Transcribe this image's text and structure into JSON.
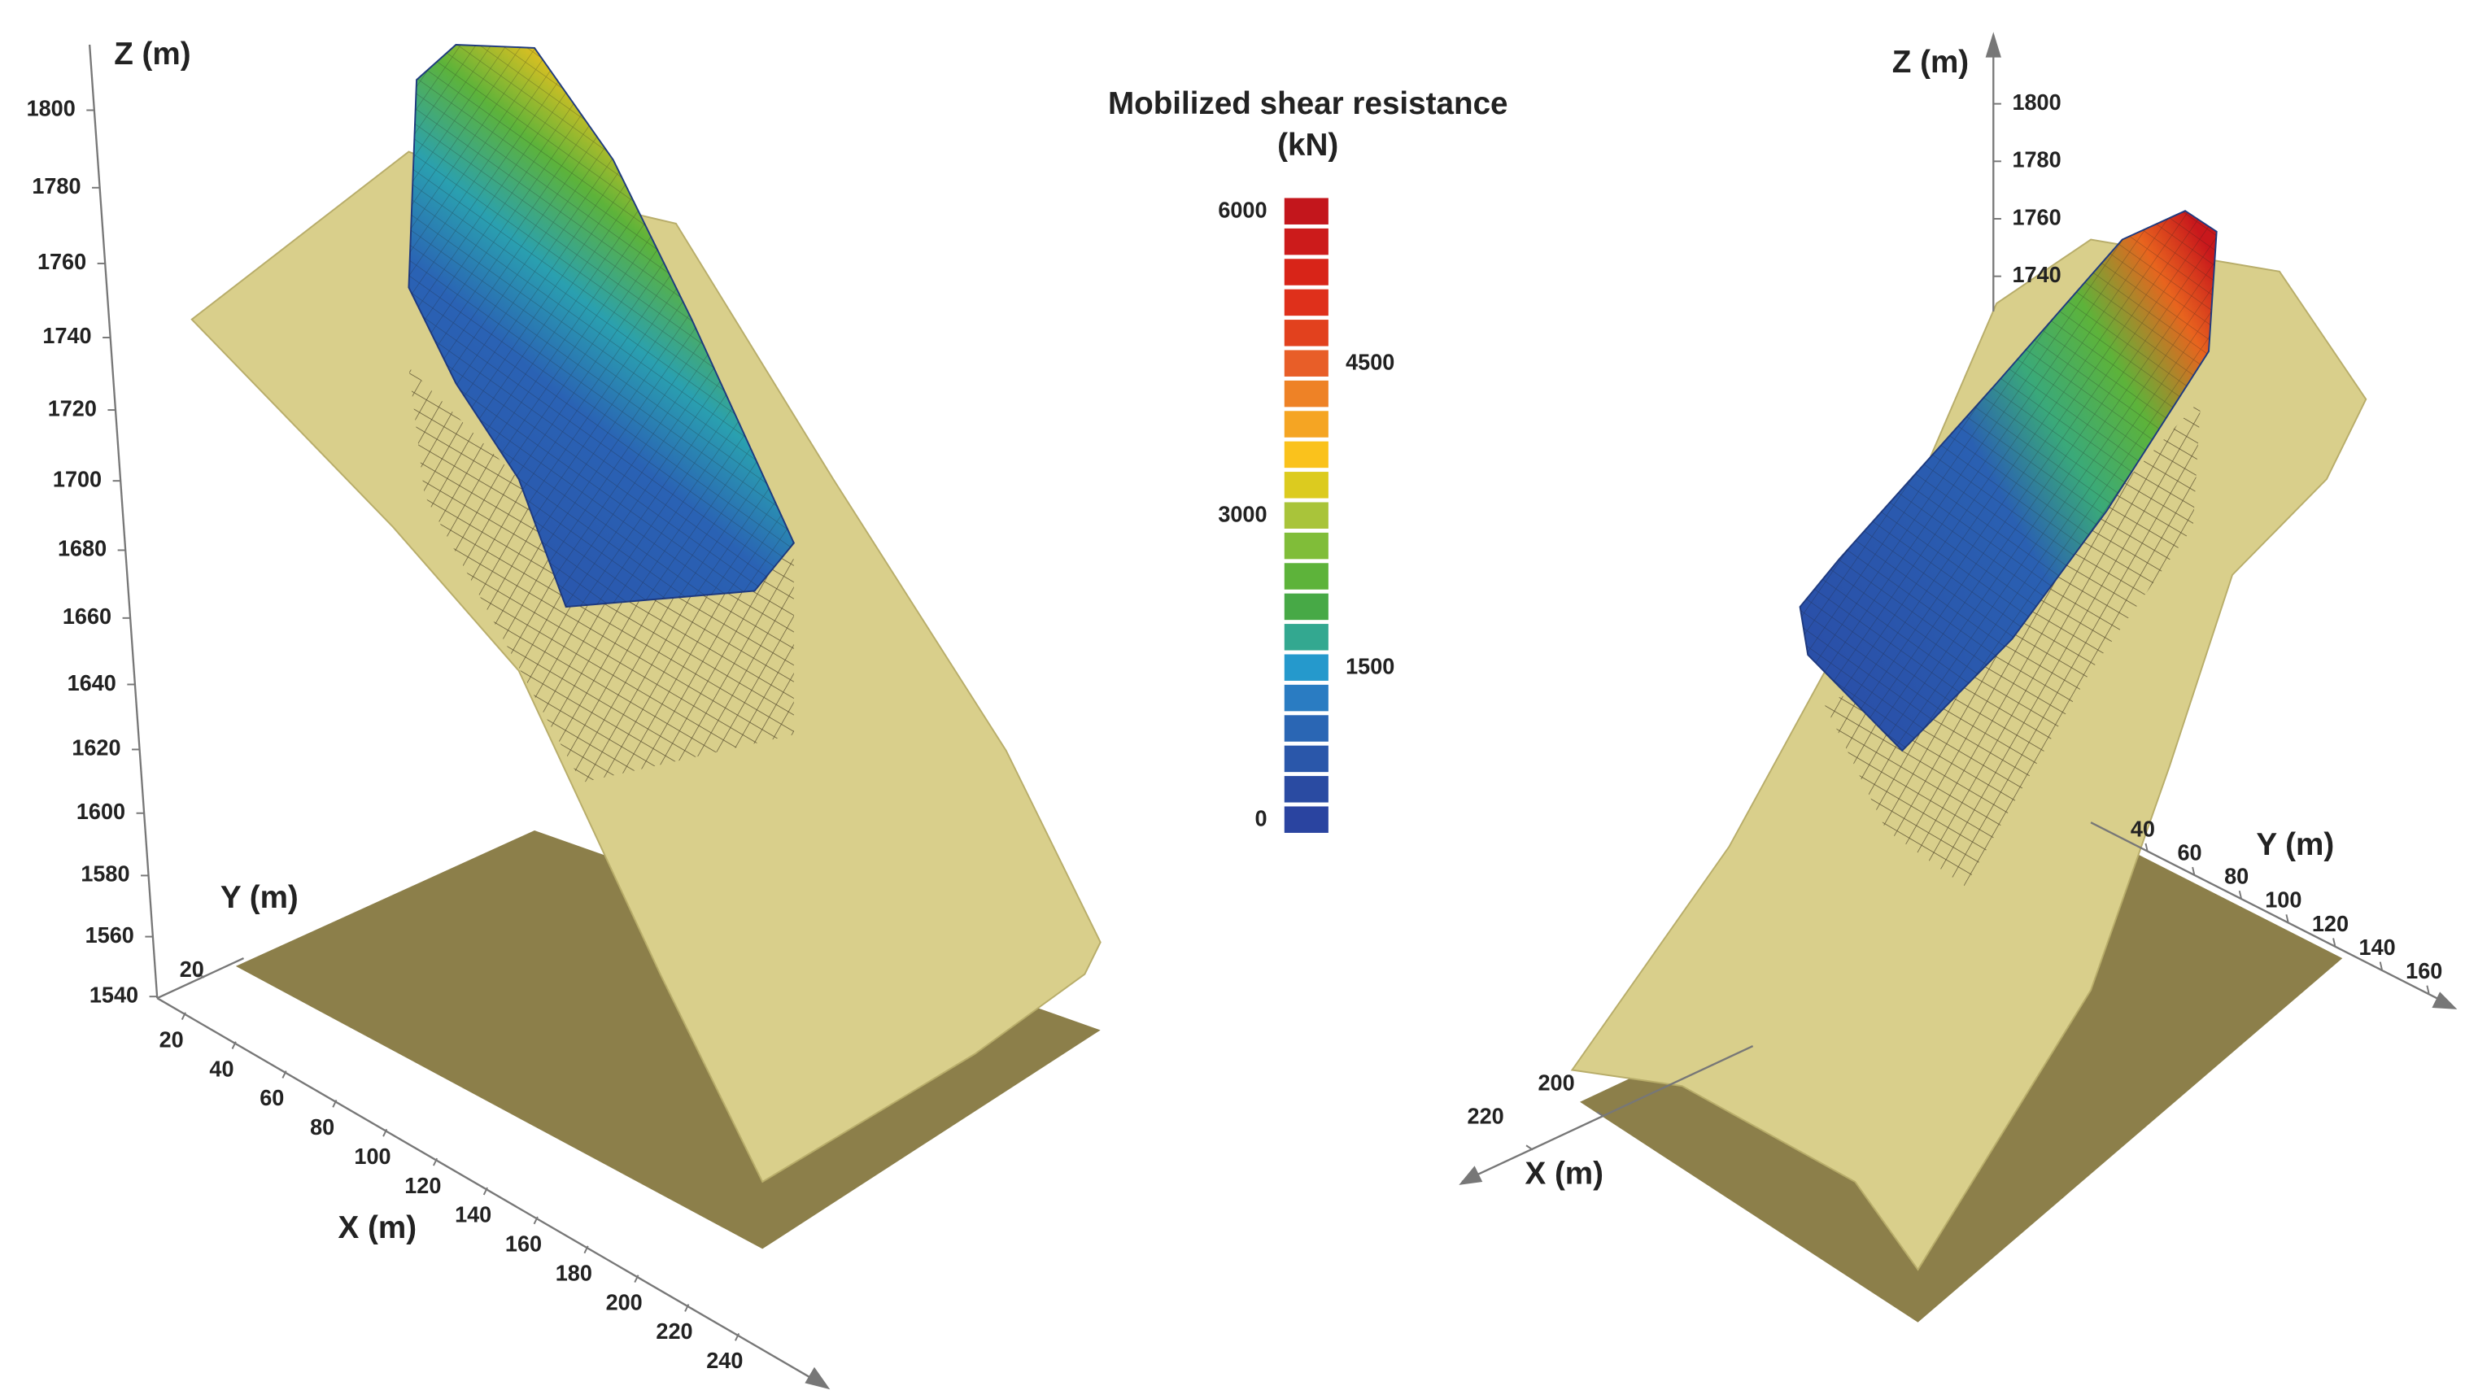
{
  "left_panel": {
    "z_axis": {
      "label": "Z (m)",
      "ticks": [
        1800,
        1780,
        1760,
        1740,
        1720,
        1700,
        1680,
        1660,
        1640,
        1620,
        1600,
        1580,
        1560,
        1540
      ]
    },
    "y_axis": {
      "label": "Y (m)",
      "ticks": [
        20
      ]
    },
    "x_axis": {
      "label": "X (m)",
      "ticks": [
        20,
        40,
        60,
        80,
        100,
        120,
        140,
        160,
        180,
        200,
        220,
        240
      ]
    }
  },
  "right_panel": {
    "z_axis": {
      "label": "Z (m)",
      "ticks": [
        1800,
        1780,
        1760,
        1740
      ]
    },
    "y_axis": {
      "label": "Y (m)",
      "ticks": [
        40,
        60,
        80,
        100,
        120,
        140,
        160
      ]
    },
    "x_axis": {
      "label": "X (m)",
      "ticks": [
        200,
        220
      ]
    }
  },
  "colorbar": {
    "title": "Mobilized shear resistance",
    "unit": "(kN)",
    "ticks": [
      6000,
      4500,
      3000,
      1500,
      0
    ],
    "colors": [
      "#c3161c",
      "#cc1b1b",
      "#d82418",
      "#df301b",
      "#e2411e",
      "#e85e28",
      "#ee8226",
      "#f5a523",
      "#fac21c",
      "#dccb1f",
      "#a9c43a",
      "#80bd39",
      "#5db33a",
      "#47a946",
      "#33a890",
      "#2599cc",
      "#2a7cc2",
      "#2a66b4",
      "#2a57aa",
      "#2a4ba2",
      "#2a44a0"
    ]
  }
}
